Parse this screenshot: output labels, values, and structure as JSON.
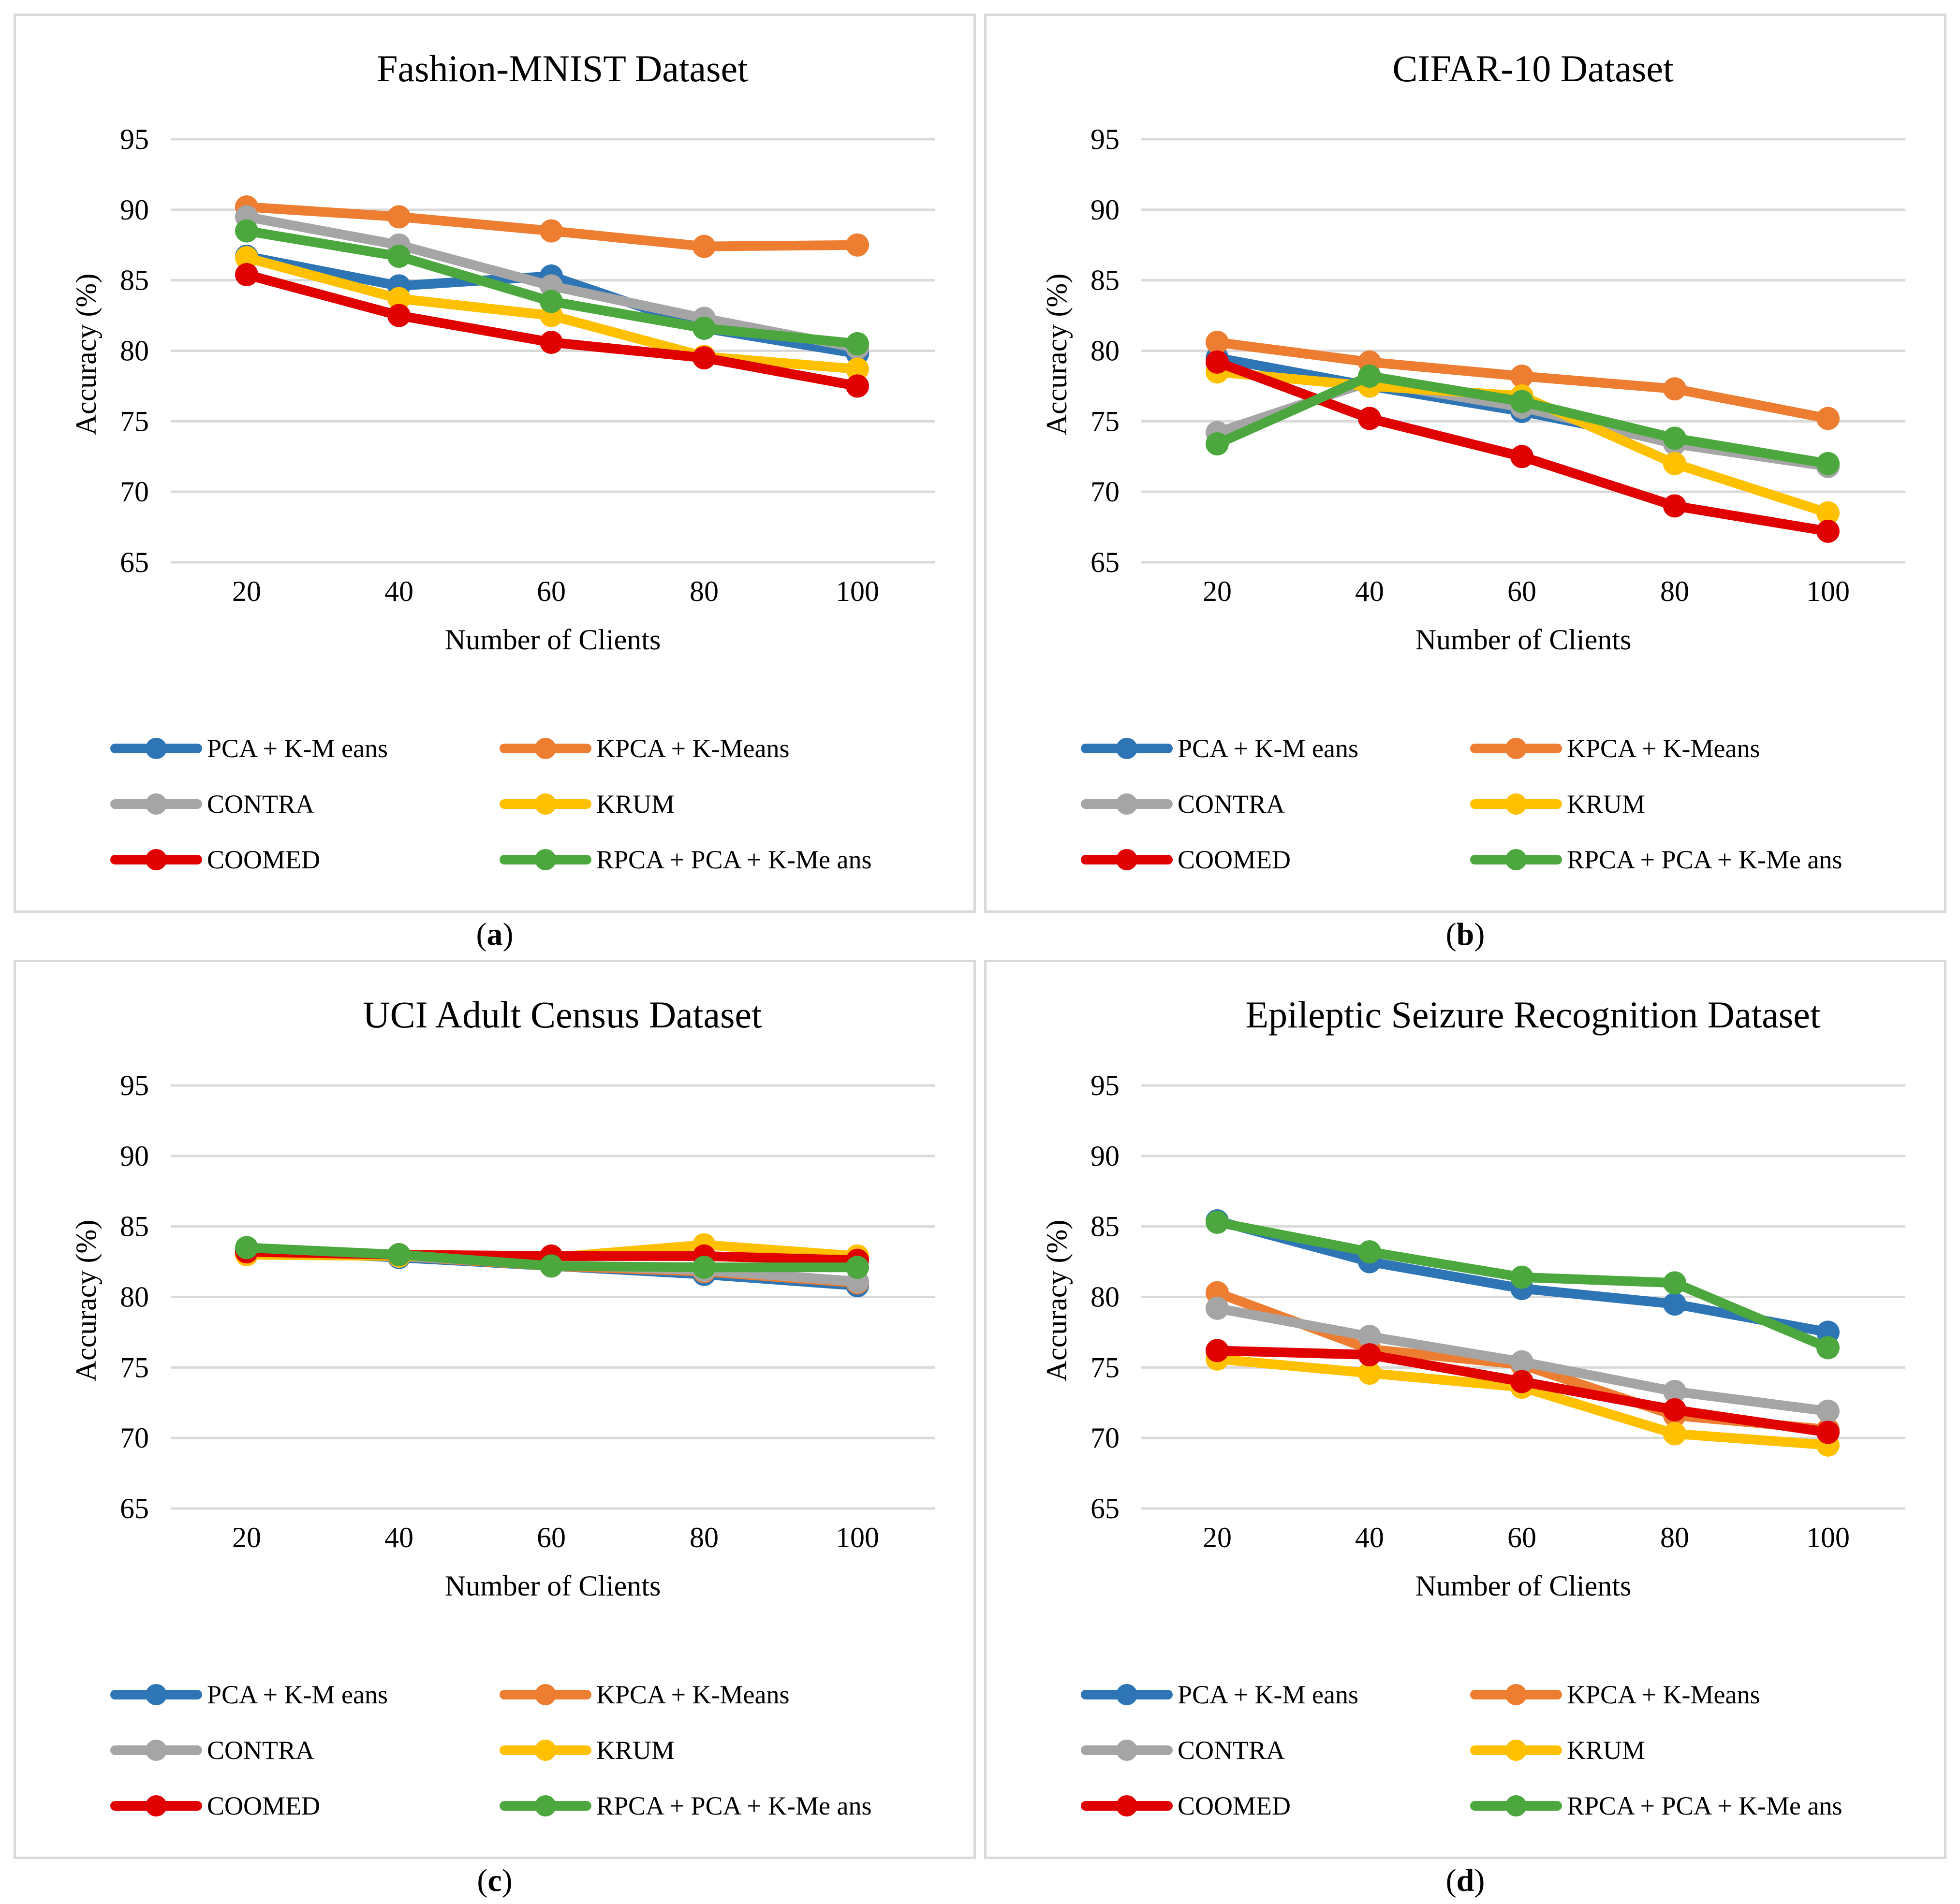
{
  "figure": {
    "captions": [
      "a",
      "b",
      "c",
      "d"
    ]
  },
  "colors": {
    "PCA + K-Means": "#2e75b6",
    "KPCA + K-Means": "#ed7d31",
    "CONTRA": "#a5a5a5",
    "KRUM": "#ffc000",
    "COOMED": "#e00000",
    "RPCA + PCA + K-Means": "#4ca83e",
    "grid": "#d9d9d9",
    "border": "#d9d9d9"
  },
  "chart_data": [
    {
      "type": "line",
      "title": "Fashion-MNIST Dataset",
      "xlabel": "Number of Clients",
      "ylabel": "Accuracy (%)",
      "categories": [
        "20",
        "40",
        "60",
        "80",
        "100"
      ],
      "yticks": [
        "65",
        "70",
        "75",
        "80",
        "85",
        "90",
        "95"
      ],
      "ylim": [
        65,
        95
      ],
      "grid": true,
      "legend": [
        "PCA + K-M eans",
        "KPCA + K-Means",
        "CONTRA",
        "KRUM",
        "COOMED",
        "RPCA + PCA + K-Me ans"
      ],
      "series": [
        {
          "name": "PCA + K-Means",
          "values": [
            86.7,
            84.6,
            85.3,
            81.6,
            79.8
          ]
        },
        {
          "name": "KPCA + K-Means",
          "values": [
            90.2,
            89.5,
            88.5,
            87.4,
            87.5
          ]
        },
        {
          "name": "CONTRA",
          "values": [
            89.5,
            87.5,
            84.6,
            82.3,
            80.2
          ]
        },
        {
          "name": "KRUM",
          "values": [
            86.6,
            83.7,
            82.5,
            79.6,
            78.7
          ]
        },
        {
          "name": "COOMED",
          "values": [
            85.4,
            82.5,
            80.6,
            79.5,
            77.5
          ]
        },
        {
          "name": "RPCA + PCA + K-Means",
          "values": [
            88.5,
            86.7,
            83.5,
            81.6,
            80.5
          ]
        }
      ]
    },
    {
      "type": "line",
      "title": "CIFAR-10 Dataset",
      "xlabel": "Number of Clients",
      "ylabel": "Accuracy (%)",
      "categories": [
        "20",
        "40",
        "60",
        "80",
        "100"
      ],
      "yticks": [
        "65",
        "70",
        "75",
        "80",
        "85",
        "90",
        "95"
      ],
      "ylim": [
        65,
        95
      ],
      "grid": true,
      "legend": [
        "PCA + K-M eans",
        "KPCA + K-Means",
        "CONTRA",
        "KRUM",
        "COOMED",
        "RPCA + PCA + K-Me ans"
      ],
      "series": [
        {
          "name": "PCA + K-Means",
          "values": [
            79.5,
            77.5,
            75.7,
            73.5,
            71.8
          ]
        },
        {
          "name": "KPCA + K-Means",
          "values": [
            80.6,
            79.2,
            78.2,
            77.3,
            75.2
          ]
        },
        {
          "name": "CONTRA",
          "values": [
            74.2,
            77.8,
            76.0,
            73.4,
            71.8
          ]
        },
        {
          "name": "KRUM",
          "values": [
            78.5,
            77.5,
            76.8,
            72.0,
            68.5
          ]
        },
        {
          "name": "COOMED",
          "values": [
            79.2,
            75.2,
            72.5,
            69.0,
            67.2
          ]
        },
        {
          "name": "RPCA + PCA + K-Means",
          "values": [
            73.4,
            78.2,
            76.4,
            73.8,
            72.0
          ]
        }
      ]
    },
    {
      "type": "line",
      "title": "UCI Adult Census Dataset",
      "xlabel": "Number of Clients",
      "ylabel": "Accuracy (%)",
      "categories": [
        "20",
        "40",
        "60",
        "80",
        "100"
      ],
      "yticks": [
        "65",
        "70",
        "75",
        "80",
        "85",
        "90",
        "95"
      ],
      "ylim": [
        65,
        95
      ],
      "grid": true,
      "legend": [
        "PCA + K-M eans",
        "KPCA + K-Means",
        "CONTRA",
        "KRUM",
        "COOMED",
        "RPCA + PCA + K-Me ans"
      ],
      "series": [
        {
          "name": "PCA + K-Means",
          "values": [
            83.3,
            82.8,
            82.2,
            81.6,
            80.8
          ]
        },
        {
          "name": "KPCA + K-Means",
          "values": [
            83.3,
            82.9,
            82.2,
            81.8,
            81.0
          ]
        },
        {
          "name": "CONTRA",
          "values": [
            83.4,
            82.9,
            82.3,
            81.9,
            81.1
          ]
        },
        {
          "name": "KRUM",
          "values": [
            83.0,
            82.9,
            82.8,
            83.7,
            82.9
          ]
        },
        {
          "name": "COOMED",
          "values": [
            83.2,
            83.0,
            82.9,
            82.9,
            82.6
          ]
        },
        {
          "name": "RPCA + PCA + K-Means",
          "values": [
            83.5,
            83.0,
            82.2,
            82.1,
            82.1
          ]
        }
      ]
    },
    {
      "type": "line",
      "title": "Epileptic Seizure Recognition Dataset",
      "xlabel": "Number of Clients",
      "ylabel": "Accuracy (%)",
      "categories": [
        "20",
        "40",
        "60",
        "80",
        "100"
      ],
      "yticks": [
        "65",
        "70",
        "75",
        "80",
        "85",
        "90",
        "95"
      ],
      "ylim": [
        65,
        95
      ],
      "grid": true,
      "legend": [
        "PCA + K-M eans",
        "KPCA + K-Means",
        "CONTRA",
        "KRUM",
        "COOMED",
        "RPCA + PCA + K-Me ans"
      ],
      "series": [
        {
          "name": "PCA + K-Means",
          "values": [
            85.4,
            82.5,
            80.6,
            79.5,
            77.5
          ]
        },
        {
          "name": "KPCA + K-Means",
          "values": [
            80.3,
            76.3,
            75.2,
            71.6,
            70.6
          ]
        },
        {
          "name": "CONTRA",
          "values": [
            79.2,
            77.2,
            75.4,
            73.3,
            71.9
          ]
        },
        {
          "name": "KRUM",
          "values": [
            75.6,
            74.6,
            73.6,
            70.3,
            69.5
          ]
        },
        {
          "name": "COOMED",
          "values": [
            76.2,
            75.9,
            74.0,
            72.0,
            70.4
          ]
        },
        {
          "name": "RPCA + PCA + K-Means",
          "values": [
            85.3,
            83.2,
            81.4,
            81.0,
            76.4
          ]
        }
      ]
    }
  ]
}
